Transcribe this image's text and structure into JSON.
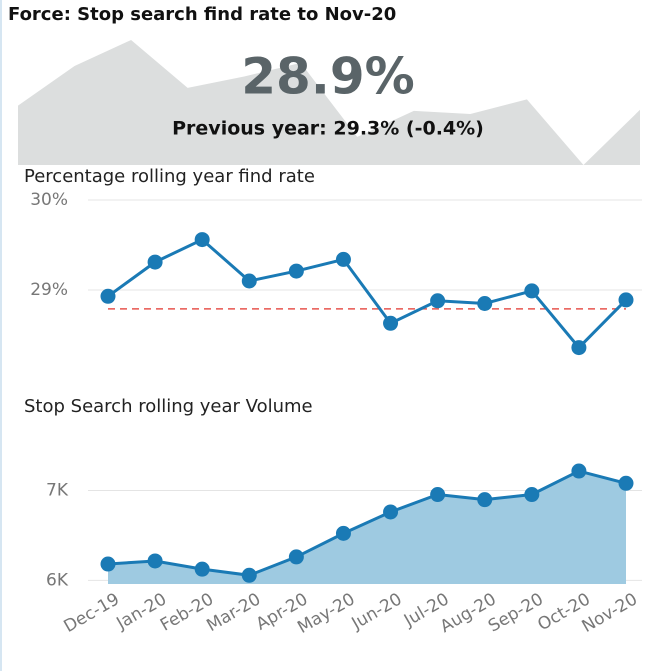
{
  "title": "Force: Stop search find rate to Nov-20",
  "kpi": {
    "value": "28.9%",
    "comparison": "Previous year: 29.3% (-0.4%)"
  },
  "chart_data": [
    {
      "type": "line",
      "title": "Percentage rolling year find rate",
      "categories": [
        "Dec-19",
        "Jan-20",
        "Feb-20",
        "Mar-20",
        "Apr-20",
        "May-20",
        "Jun-20",
        "Jul-20",
        "Aug-20",
        "Sep-20",
        "Oct-20",
        "Nov-20"
      ],
      "values": [
        28.93,
        29.31,
        29.56,
        29.1,
        29.21,
        29.34,
        28.63,
        28.88,
        28.85,
        28.99,
        28.36,
        28.89
      ],
      "color": "#1a7ab5",
      "reference_line": 28.79,
      "reference_color": "#e8554e",
      "ylim": [
        28.2,
        30.0
      ],
      "yticks": [
        {
          "value": 29,
          "label": "29%"
        },
        {
          "value": 30,
          "label": "30%"
        }
      ],
      "grid": true
    },
    {
      "type": "area",
      "title": "Stop Search rolling year Volume",
      "categories": [
        "Dec-19",
        "Jan-20",
        "Feb-20",
        "Mar-20",
        "Apr-20",
        "May-20",
        "Jun-20",
        "Jul-20",
        "Aug-20",
        "Sep-20",
        "Oct-20",
        "Nov-20"
      ],
      "values": [
        6182,
        6216,
        6125,
        6057,
        6261,
        6523,
        6761,
        6955,
        6898,
        6955,
        7216,
        7080
      ],
      "color": "#1a7ab5",
      "fill": "#9ecae1",
      "ylim": [
        5960,
        7450
      ],
      "yticks": [
        {
          "value": 6000,
          "label": "6K"
        },
        {
          "value": 7000,
          "label": "7K"
        }
      ],
      "grid": true
    }
  ]
}
